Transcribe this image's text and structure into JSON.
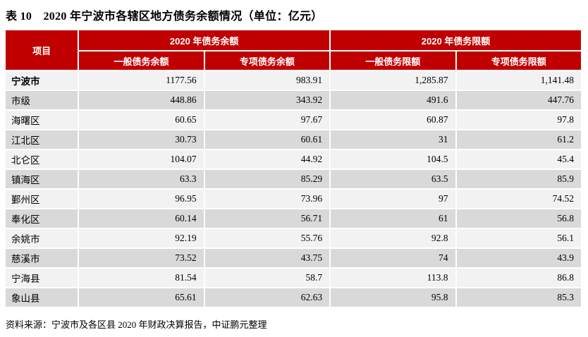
{
  "title": "表 10　2020 年宁波市各辖区地方债务余额情况（单位：亿元）",
  "table": {
    "header": {
      "item": "项目",
      "group_balance": "2020 年债务余额",
      "group_limit": "2020 年债务限额",
      "col_general_balance": "一般债务余额",
      "col_special_balance": "专项债务余额",
      "col_general_limit": "一般债务限额",
      "col_special_limit": "专项债务限额"
    },
    "rows": [
      {
        "bold": true,
        "cells": [
          "宁波市",
          "1177.56",
          "983.91",
          "1,285.87",
          "1,141.48"
        ]
      },
      {
        "bold": false,
        "cells": [
          "市级",
          "448.86",
          "343.92",
          "491.6",
          "447.76"
        ]
      },
      {
        "bold": false,
        "cells": [
          "海曙区",
          "60.65",
          "97.67",
          "60.87",
          "97.8"
        ]
      },
      {
        "bold": false,
        "cells": [
          "江北区",
          "30.73",
          "60.61",
          "31",
          "61.2"
        ]
      },
      {
        "bold": false,
        "cells": [
          "北仑区",
          "104.07",
          "44.92",
          "104.5",
          "45.4"
        ]
      },
      {
        "bold": false,
        "cells": [
          "镇海区",
          "63.3",
          "85.29",
          "63.5",
          "85.9"
        ]
      },
      {
        "bold": false,
        "cells": [
          "鄞州区",
          "96.95",
          "73.96",
          "97",
          "74.52"
        ]
      },
      {
        "bold": false,
        "cells": [
          "奉化区",
          "60.14",
          "56.71",
          "61",
          "56.8"
        ]
      },
      {
        "bold": false,
        "cells": [
          "余姚市",
          "92.19",
          "55.76",
          "92.8",
          "56.1"
        ]
      },
      {
        "bold": false,
        "cells": [
          "慈溪市",
          "73.52",
          "43.75",
          "74",
          "43.9"
        ]
      },
      {
        "bold": false,
        "cells": [
          "宁海县",
          "81.54",
          "58.7",
          "113.8",
          "86.8"
        ]
      },
      {
        "bold": false,
        "cells": [
          "象山县",
          "65.61",
          "62.63",
          "95.8",
          "85.3"
        ]
      }
    ]
  },
  "footer": {
    "source": "资料来源：宁波市及各区县 2020 年财政决算报告，中证鹏元整理"
  },
  "colors": {
    "header_red": "#C00000",
    "header_text": "#FFFFFF",
    "row_light": "#F2F2F2",
    "row_dark": "#D9D9D9",
    "text": "#000000"
  }
}
